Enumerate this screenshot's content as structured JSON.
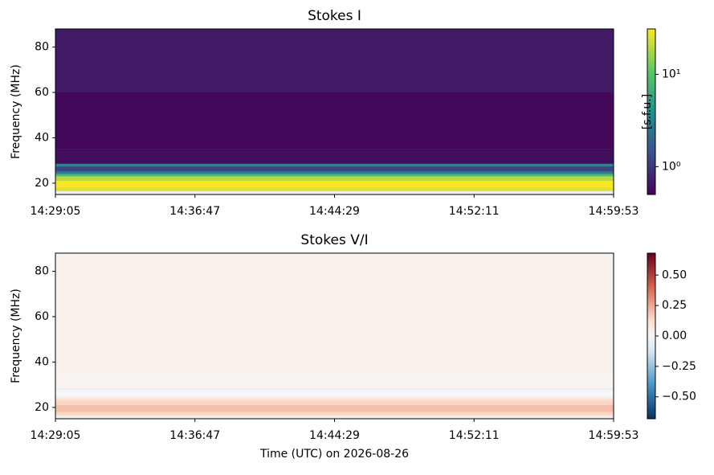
{
  "chart_data": [
    {
      "type": "heatmap",
      "title": "Stokes I",
      "ylabel": "Frequency (MHz)",
      "xlim": [
        "14:29:05",
        "14:59:53"
      ],
      "xticks": [
        "14:29:05",
        "14:36:47",
        "14:44:29",
        "14:52:11",
        "14:59:53"
      ],
      "ylim": [
        15,
        88
      ],
      "yticks": [
        20,
        40,
        60,
        80
      ],
      "y_edges": [
        15,
        16.5,
        18,
        21,
        23,
        24,
        25,
        27.5,
        28.5,
        35,
        60,
        88
      ],
      "values": [
        null,
        25,
        30,
        20,
        8,
        3,
        1.2,
        3,
        0.6,
        0.55,
        0.7
      ],
      "colormap": "viridis",
      "color_scale": "log",
      "color_lim": [
        0.5,
        31
      ],
      "color_ticks": [
        {
          "value": 1,
          "label": "10⁰"
        },
        {
          "value": 10,
          "label": "10¹"
        }
      ],
      "colorbar_label": "[s.f.u.]"
    },
    {
      "type": "heatmap",
      "title": "Stokes V/I",
      "ylabel": "Frequency (MHz)",
      "xlabel": "Time (UTC) on 2026-08-26",
      "xlim": [
        "14:29:05",
        "14:59:53"
      ],
      "xticks": [
        "14:29:05",
        "14:36:47",
        "14:44:29",
        "14:52:11",
        "14:59:53"
      ],
      "ylim": [
        15,
        88
      ],
      "yticks": [
        20,
        40,
        60,
        80
      ],
      "y_edges": [
        15,
        16.5,
        18,
        21,
        23,
        24,
        25,
        27.5,
        28.5,
        35,
        60,
        88
      ],
      "values": [
        null,
        0.15,
        0.2,
        0.15,
        0.1,
        0.05,
        0.0,
        -0.05,
        0.02,
        0.03,
        0.03
      ],
      "colormap": "RdBu_r",
      "color_scale": "linear",
      "color_lim": [
        -0.68,
        0.68
      ],
      "color_ticks": [
        {
          "value": 0.5,
          "label": "0.50"
        },
        {
          "value": 0.25,
          "label": "0.25"
        },
        {
          "value": 0,
          "label": "0.00"
        },
        {
          "value": -0.25,
          "label": "−0.25"
        },
        {
          "value": -0.5,
          "label": "−0.50"
        }
      ]
    }
  ]
}
